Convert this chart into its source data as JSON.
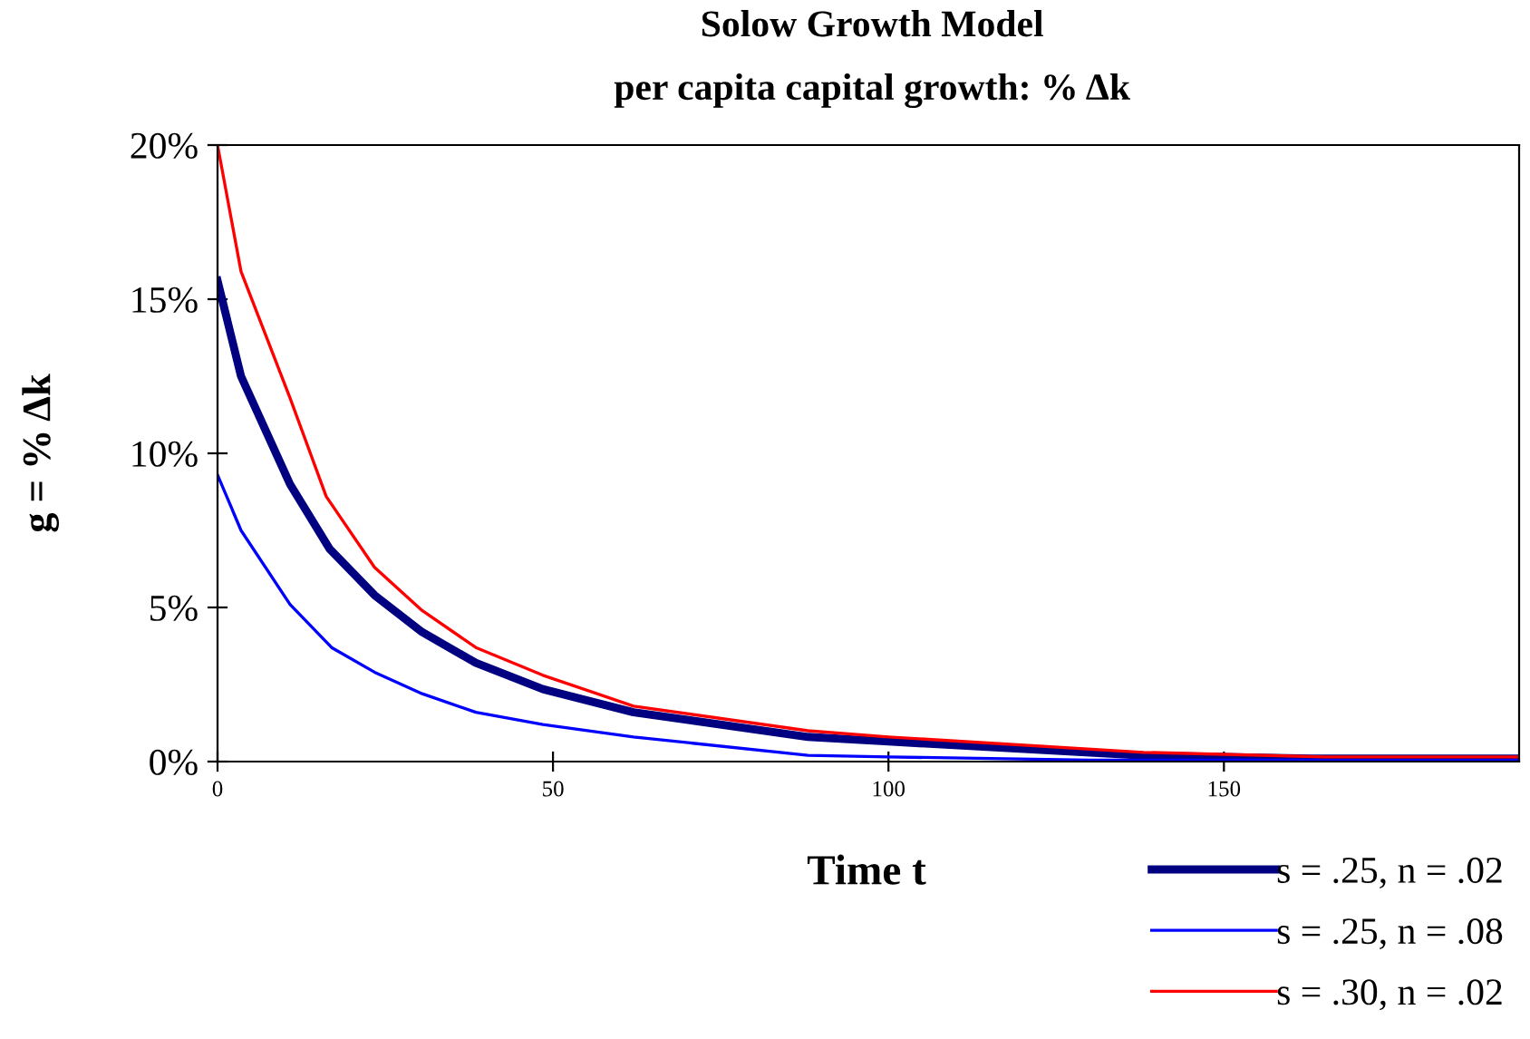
{
  "chart_data": {
    "type": "line",
    "title": "Solow Growth Model",
    "subtitle": "per capita capital growth: % Δk",
    "xlabel": "Time t",
    "ylabel": "g = % Δk",
    "xlim": [
      0,
      194
    ],
    "xticks": [
      0,
      50,
      100,
      150
    ],
    "ylim": [
      0,
      20
    ],
    "yticks": [
      {
        "value": 0,
        "label": "0%"
      },
      {
        "value": 5,
        "label": "5%"
      },
      {
        "value": 10,
        "label": "10%"
      },
      {
        "value": 15,
        "label": "15%"
      },
      {
        "value": 20,
        "label": "20%"
      }
    ],
    "grid": false,
    "legend": "bottom right",
    "marker": "none",
    "line_style": "solid",
    "series": [
      {
        "name": "s = .25, n = .02",
        "color": "#000080",
        "x": [
          0,
          3.5,
          10.8,
          16.7,
          23.4,
          30.5,
          38.5,
          48.5,
          62,
          88,
          100,
          138,
          163,
          194
        ],
        "values": [
          15.6,
          12.5,
          9.0,
          6.9,
          5.4,
          4.2,
          3.2,
          2.35,
          1.6,
          0.8,
          0.65,
          0.2,
          0.1,
          0.1
        ]
      },
      {
        "name": "s = .25, n = .08",
        "color": "#0000ff",
        "x": [
          0,
          3.5,
          10.8,
          17,
          23.4,
          30.5,
          38.5,
          48.5,
          62,
          88,
          100,
          130,
          194
        ],
        "values": [
          9.3,
          7.5,
          5.1,
          3.7,
          2.9,
          2.2,
          1.6,
          1.2,
          0.8,
          0.2,
          0.15,
          0.05,
          0.05
        ]
      },
      {
        "name": "s = .30, n = .02",
        "color": "#ff0000",
        "x": [
          0,
          3.5,
          10.8,
          16.2,
          23.4,
          30.5,
          38.5,
          48.5,
          62,
          88,
          100,
          138,
          165,
          194
        ],
        "values": [
          20,
          15.9,
          11.8,
          8.6,
          6.3,
          4.9,
          3.7,
          2.8,
          1.8,
          1.0,
          0.8,
          0.3,
          0.15,
          0.15
        ]
      }
    ]
  }
}
